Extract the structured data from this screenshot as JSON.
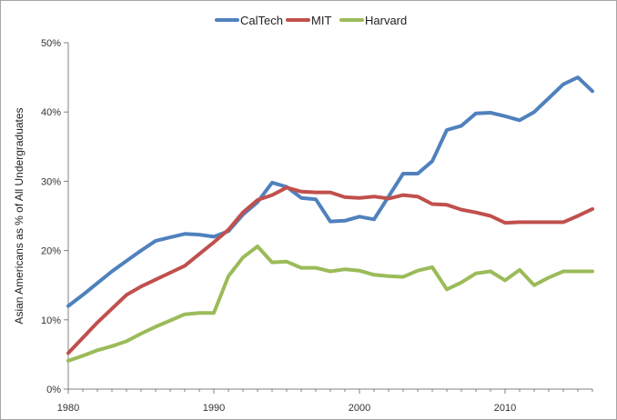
{
  "chart_data": {
    "type": "line",
    "title": "",
    "xlabel": "",
    "ylabel": "Asian Americans as % of All Undergraduates",
    "xlim": [
      1980,
      2016
    ],
    "ylim": [
      0,
      50
    ],
    "x_ticks": [
      1980,
      1990,
      2000,
      2010
    ],
    "y_ticks": [
      0,
      10,
      20,
      30,
      40,
      50
    ],
    "y_tick_labels": [
      "0%",
      "10%",
      "20%",
      "30%",
      "40%",
      "50%"
    ],
    "grid": false,
    "legend_position": "top",
    "series": [
      {
        "name": "CalTech",
        "color": "#4f81bd",
        "x": [
          1980,
          1981,
          1982,
          1983,
          1984,
          1985,
          1986,
          1987,
          1988,
          1989,
          1990,
          1991,
          1992,
          1993,
          1994,
          1995,
          1996,
          1997,
          1998,
          1999,
          2000,
          2001,
          2002,
          2003,
          2004,
          2005,
          2006,
          2007,
          2008,
          2009,
          2010,
          2011,
          2012,
          2013,
          2014,
          2015,
          2016
        ],
        "values": [
          12.0,
          13.6,
          15.3,
          17.0,
          18.5,
          20.0,
          21.4,
          21.9,
          22.4,
          22.3,
          22.0,
          22.8,
          25.2,
          27.0,
          29.8,
          29.2,
          27.6,
          27.4,
          24.2,
          24.3,
          24.9,
          24.5,
          27.8,
          31.1,
          31.1,
          32.9,
          37.4,
          38.0,
          39.8,
          39.9,
          39.4,
          38.8,
          40.0,
          42.0,
          44.0,
          45.0,
          43.0
        ]
      },
      {
        "name": "MIT",
        "color": "#c0504d",
        "x": [
          1980,
          1981,
          1982,
          1983,
          1984,
          1985,
          1986,
          1987,
          1988,
          1989,
          1990,
          1991,
          1992,
          1993,
          1994,
          1995,
          1996,
          1997,
          1998,
          1999,
          2000,
          2001,
          2002,
          2003,
          2004,
          2005,
          2006,
          2007,
          2008,
          2009,
          2010,
          2011,
          2012,
          2013,
          2014,
          2015,
          2016
        ],
        "values": [
          5.2,
          7.4,
          9.6,
          11.6,
          13.6,
          14.8,
          15.8,
          16.8,
          17.8,
          19.5,
          21.2,
          23.0,
          25.5,
          27.3,
          28.0,
          29.1,
          28.5,
          28.4,
          28.4,
          27.7,
          27.6,
          27.8,
          27.5,
          28.0,
          27.8,
          26.7,
          26.6,
          25.9,
          25.5,
          25.0,
          24.0,
          24.1,
          24.1,
          24.1,
          24.1,
          25.0,
          26.0
        ]
      },
      {
        "name": "Harvard",
        "color": "#9bbb59",
        "x": [
          1980,
          1981,
          1982,
          1983,
          1984,
          1985,
          1986,
          1987,
          1988,
          1989,
          1990,
          1991,
          1992,
          1993,
          1994,
          1995,
          1996,
          1997,
          1998,
          1999,
          2000,
          2001,
          2002,
          2003,
          2004,
          2005,
          2006,
          2007,
          2008,
          2009,
          2010,
          2011,
          2012,
          2013,
          2014,
          2015,
          2016
        ],
        "values": [
          4.1,
          4.8,
          5.6,
          6.2,
          6.9,
          8.0,
          9.0,
          9.9,
          10.8,
          11.0,
          11.0,
          16.3,
          19.0,
          20.6,
          18.3,
          18.4,
          17.5,
          17.5,
          17.0,
          17.3,
          17.1,
          16.5,
          16.3,
          16.2,
          17.1,
          17.6,
          14.4,
          15.4,
          16.7,
          17.0,
          15.7,
          17.2,
          15.0,
          16.1,
          17.0,
          17.0,
          17.0
        ]
      }
    ]
  }
}
